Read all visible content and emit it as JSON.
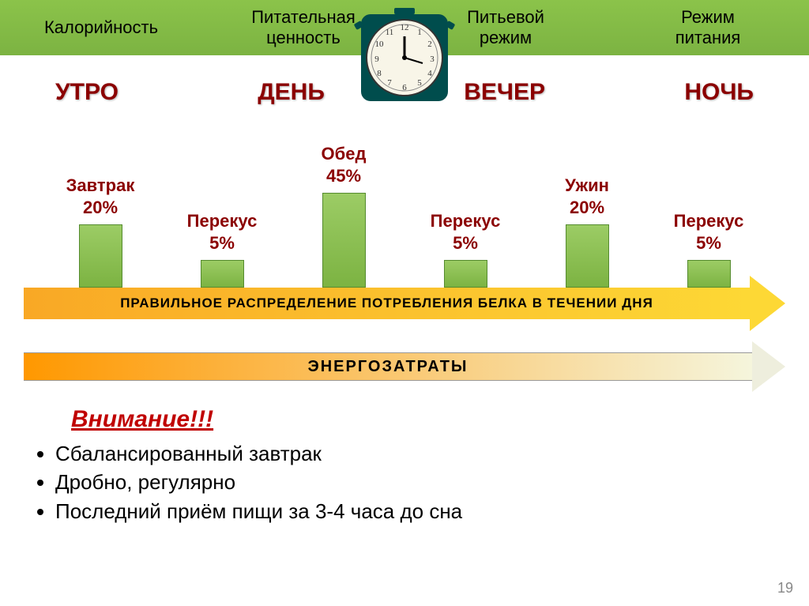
{
  "topBar": {
    "items": [
      "Калорийность",
      "Питательная\nценность",
      "Питьевой\nрежим",
      "Режим\nпитания"
    ],
    "bg_start": "#8bc34a",
    "bg_end": "#7cb342"
  },
  "timeOfDay": [
    {
      "label": "УТРО",
      "color": "#8B0000"
    },
    {
      "label": "ДЕНЬ",
      "color": "#8B0000"
    },
    {
      "label": "ВЕЧЕР",
      "color": "#8B0000"
    },
    {
      "label": "НОЧЬ",
      "color": "#8B0000"
    }
  ],
  "chart": {
    "bars": [
      {
        "name": "Завтрак",
        "pct": "20%",
        "height": 80,
        "label_color": "#8B0000"
      },
      {
        "name": "Перекус",
        "pct": "5%",
        "height": 35,
        "label_color": "#8B0000"
      },
      {
        "name": "Обед",
        "pct": "45%",
        "height": 120,
        "label_color": "#8B0000"
      },
      {
        "name": "Перекус",
        "pct": "5%",
        "height": 35,
        "label_color": "#8B0000"
      },
      {
        "name": "Ужин",
        "pct": "20%",
        "height": 80,
        "label_color": "#8B0000"
      },
      {
        "name": "Перекус",
        "pct": "5%",
        "height": 35,
        "label_color": "#8B0000"
      }
    ],
    "bar_fill_top": "#9ccc65",
    "bar_fill_bottom": "#7cb342",
    "bar_border": "#558b2f",
    "arrow_text": "ПРАВИЛЬНОЕ  РАСПРЕДЕЛЕНИЕ   ПОТРЕБЛЕНИЯ   БЕЛКА   В  ТЕЧЕНИИ   ДНЯ",
    "arrow_grad_start": "#f9a825",
    "arrow_grad_end": "#fdd835"
  },
  "energyArrow": {
    "text": "ЭНЕРГОЗАТРАТЫ",
    "grad_start": "#ff9800",
    "grad_end": "#f5f5dc",
    "head_color": "#eeeedd"
  },
  "attention": {
    "title": "Внимание!!!",
    "title_color": "#c00000",
    "bullets": [
      "Сбалансированный завтрак",
      "Дробно, регулярно",
      "Последний приём пищи за 3-4 часа до сна"
    ]
  },
  "pageNumber": "19",
  "clock": {
    "frame_color": "#004d4d",
    "face_color": "#f8f5e8"
  }
}
